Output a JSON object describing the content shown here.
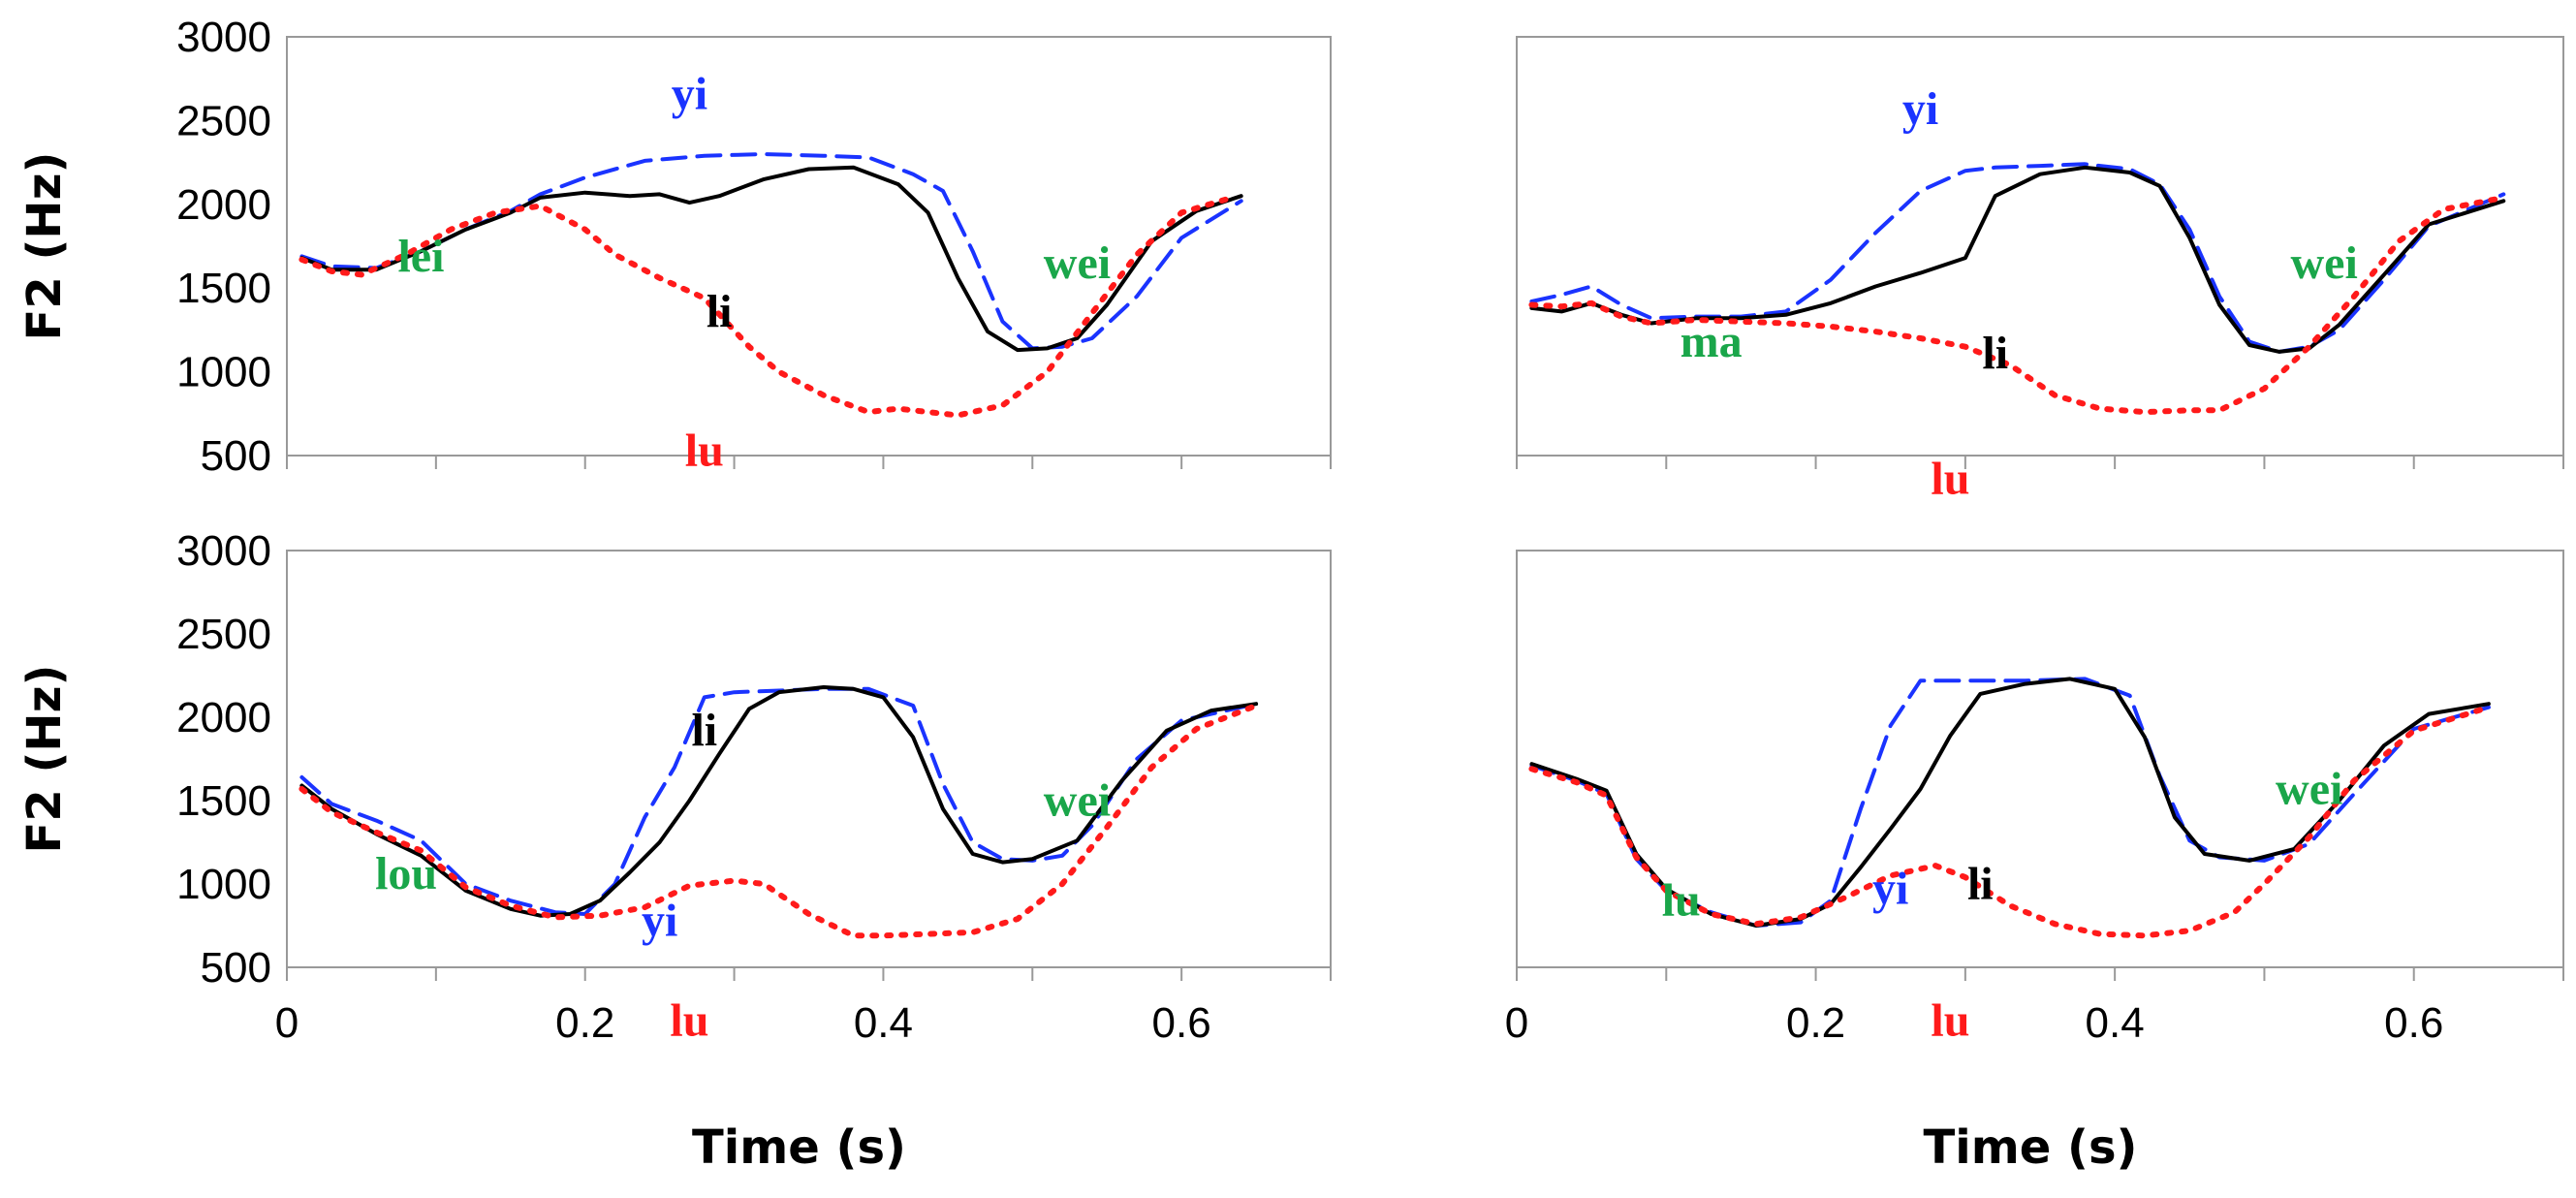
{
  "figure": {
    "colors": {
      "lu": "#ff1a1a",
      "li": "#000000",
      "yi": "#1a33ff",
      "context": "#1aa64a",
      "frame": "#999999"
    }
  },
  "chart_data": [
    {
      "type": "line",
      "panel": "top-left",
      "ylabel": "F2 (Hz)",
      "xlabel": "",
      "xlim": [
        0,
        0.7
      ],
      "ylim": [
        500,
        3000
      ],
      "yticks": [
        "500",
        "1000",
        "1500",
        "2000",
        "2500",
        "3000"
      ],
      "xticks": [],
      "series": [
        {
          "name": "yi",
          "style": "dashed",
          "color_key": "yi",
          "x": [
            0.01,
            0.03,
            0.06,
            0.09,
            0.12,
            0.15,
            0.17,
            0.2,
            0.24,
            0.28,
            0.32,
            0.36,
            0.39,
            0.42,
            0.44,
            0.46,
            0.48,
            0.5,
            0.52,
            0.54,
            0.57,
            0.6,
            0.64
          ],
          "y": [
            1690,
            1630,
            1620,
            1720,
            1850,
            1960,
            2060,
            2160,
            2260,
            2290,
            2300,
            2290,
            2280,
            2180,
            2080,
            1720,
            1300,
            1140,
            1150,
            1200,
            1450,
            1800,
            2020
          ]
        },
        {
          "name": "li",
          "style": "solid",
          "color_key": "li",
          "x": [
            0.01,
            0.03,
            0.06,
            0.09,
            0.12,
            0.15,
            0.17,
            0.2,
            0.23,
            0.25,
            0.27,
            0.29,
            0.32,
            0.35,
            0.38,
            0.41,
            0.43,
            0.45,
            0.47,
            0.49,
            0.51,
            0.53,
            0.55,
            0.58,
            0.61,
            0.64
          ],
          "y": [
            1680,
            1610,
            1610,
            1720,
            1850,
            1950,
            2040,
            2070,
            2050,
            2060,
            2010,
            2050,
            2150,
            2210,
            2220,
            2120,
            1950,
            1560,
            1240,
            1130,
            1140,
            1200,
            1400,
            1780,
            1960,
            2050
          ]
        },
        {
          "name": "lu",
          "style": "dotted",
          "color_key": "lu",
          "x": [
            0.01,
            0.03,
            0.05,
            0.08,
            0.11,
            0.14,
            0.17,
            0.2,
            0.22,
            0.25,
            0.28,
            0.31,
            0.33,
            0.36,
            0.39,
            0.41,
            0.43,
            0.45,
            0.48,
            0.51,
            0.54,
            0.57,
            0.6,
            0.63
          ],
          "y": [
            1670,
            1600,
            1580,
            1700,
            1850,
            1950,
            1990,
            1850,
            1700,
            1560,
            1440,
            1150,
            1000,
            860,
            760,
            780,
            760,
            740,
            800,
            1000,
            1350,
            1700,
            1950,
            2030
          ]
        }
      ],
      "annotations": [
        {
          "text": "lei",
          "color_key": "context"
        },
        {
          "text": "yi",
          "color_key": "yi"
        },
        {
          "text": "li",
          "color_key": "li"
        },
        {
          "text": "lu",
          "color_key": "lu"
        },
        {
          "text": "wei",
          "color_key": "context"
        }
      ]
    },
    {
      "type": "line",
      "panel": "top-right",
      "ylabel": "",
      "xlabel": "",
      "xlim": [
        0,
        0.7
      ],
      "ylim": [
        500,
        3000
      ],
      "yticks": [],
      "xticks": [],
      "series": [
        {
          "name": "yi",
          "style": "dashed",
          "color_key": "yi",
          "x": [
            0.01,
            0.03,
            0.05,
            0.07,
            0.09,
            0.12,
            0.15,
            0.18,
            0.21,
            0.24,
            0.27,
            0.3,
            0.32,
            0.35,
            0.38,
            0.41,
            0.43,
            0.45,
            0.47,
            0.49,
            0.51,
            0.53,
            0.55,
            0.58,
            0.61,
            0.66
          ],
          "y": [
            1420,
            1460,
            1510,
            1400,
            1320,
            1330,
            1330,
            1360,
            1550,
            1830,
            2080,
            2200,
            2220,
            2230,
            2240,
            2210,
            2120,
            1850,
            1450,
            1180,
            1120,
            1150,
            1250,
            1550,
            1870,
            2060
          ]
        },
        {
          "name": "li",
          "style": "solid",
          "color_key": "li",
          "x": [
            0.01,
            0.03,
            0.05,
            0.07,
            0.09,
            0.12,
            0.15,
            0.18,
            0.21,
            0.24,
            0.27,
            0.3,
            0.32,
            0.35,
            0.38,
            0.41,
            0.43,
            0.45,
            0.47,
            0.49,
            0.51,
            0.53,
            0.55,
            0.58,
            0.61,
            0.66
          ],
          "y": [
            1380,
            1360,
            1410,
            1340,
            1290,
            1320,
            1320,
            1340,
            1410,
            1510,
            1590,
            1680,
            2050,
            2180,
            2220,
            2190,
            2110,
            1800,
            1400,
            1160,
            1120,
            1140,
            1280,
            1580,
            1880,
            2020
          ]
        },
        {
          "name": "lu",
          "style": "dotted",
          "color_key": "lu",
          "x": [
            0.01,
            0.03,
            0.05,
            0.07,
            0.09,
            0.12,
            0.15,
            0.18,
            0.21,
            0.24,
            0.27,
            0.3,
            0.33,
            0.36,
            0.39,
            0.42,
            0.45,
            0.47,
            0.5,
            0.53,
            0.56,
            0.59,
            0.62,
            0.66
          ],
          "y": [
            1400,
            1390,
            1410,
            1330,
            1290,
            1310,
            1300,
            1290,
            1270,
            1240,
            1200,
            1150,
            1040,
            860,
            780,
            760,
            770,
            770,
            900,
            1150,
            1450,
            1780,
            1970,
            2040
          ]
        }
      ],
      "annotations": [
        {
          "text": "ma",
          "color_key": "context"
        },
        {
          "text": "yi",
          "color_key": "yi"
        },
        {
          "text": "li",
          "color_key": "li"
        },
        {
          "text": "lu",
          "color_key": "lu"
        },
        {
          "text": "wei",
          "color_key": "context"
        }
      ]
    },
    {
      "type": "line",
      "panel": "bottom-left",
      "ylabel": "F2 (Hz)",
      "xlabel": "Time (s)",
      "xlim": [
        0,
        0.7
      ],
      "ylim": [
        500,
        3000
      ],
      "yticks": [
        "500",
        "1000",
        "1500",
        "2000",
        "2500",
        "3000"
      ],
      "xticks": [
        "0",
        "0.2",
        "0.4",
        "0.6"
      ],
      "series": [
        {
          "name": "yi",
          "style": "dashed",
          "color_key": "yi",
          "x": [
            0.01,
            0.03,
            0.06,
            0.09,
            0.12,
            0.15,
            0.18,
            0.2,
            0.22,
            0.24,
            0.26,
            0.28,
            0.3,
            0.33,
            0.36,
            0.39,
            0.42,
            0.44,
            0.46,
            0.48,
            0.5,
            0.52,
            0.54,
            0.57,
            0.6,
            0.65
          ],
          "y": [
            1640,
            1480,
            1380,
            1260,
            1000,
            900,
            830,
            820,
            1000,
            1400,
            1700,
            2120,
            2150,
            2160,
            2170,
            2170,
            2070,
            1600,
            1250,
            1150,
            1140,
            1170,
            1350,
            1750,
            1980,
            2080
          ]
        },
        {
          "name": "li",
          "style": "solid",
          "color_key": "li",
          "x": [
            0.01,
            0.03,
            0.06,
            0.09,
            0.12,
            0.15,
            0.17,
            0.19,
            0.21,
            0.23,
            0.25,
            0.27,
            0.29,
            0.31,
            0.33,
            0.36,
            0.38,
            0.4,
            0.42,
            0.44,
            0.46,
            0.48,
            0.5,
            0.53,
            0.56,
            0.59,
            0.62,
            0.65
          ],
          "y": [
            1590,
            1450,
            1300,
            1170,
            960,
            850,
            810,
            820,
            900,
            1070,
            1250,
            1500,
            1780,
            2050,
            2150,
            2180,
            2170,
            2120,
            1880,
            1450,
            1180,
            1130,
            1150,
            1260,
            1620,
            1920,
            2040,
            2080
          ]
        },
        {
          "name": "lu",
          "style": "dotted",
          "color_key": "lu",
          "x": [
            0.01,
            0.03,
            0.06,
            0.09,
            0.12,
            0.15,
            0.18,
            0.21,
            0.24,
            0.27,
            0.3,
            0.32,
            0.35,
            0.38,
            0.4,
            0.43,
            0.46,
            0.49,
            0.52,
            0.55,
            0.58,
            0.61,
            0.65
          ],
          "y": [
            1570,
            1430,
            1310,
            1200,
            980,
            870,
            800,
            810,
            860,
            990,
            1020,
            1000,
            820,
            690,
            690,
            700,
            710,
            790,
            1000,
            1340,
            1700,
            1930,
            2070
          ]
        }
      ],
      "annotations": [
        {
          "text": "lou",
          "color_key": "context"
        },
        {
          "text": "yi",
          "color_key": "yi"
        },
        {
          "text": "li",
          "color_key": "li"
        },
        {
          "text": "lu",
          "color_key": "lu"
        },
        {
          "text": "wei",
          "color_key": "context"
        }
      ]
    },
    {
      "type": "line",
      "panel": "bottom-right",
      "ylabel": "",
      "xlabel": "Time (s)",
      "xlim": [
        0,
        0.7
      ],
      "ylim": [
        500,
        3000
      ],
      "yticks": [],
      "xticks": [
        "0",
        "0.2",
        "0.4",
        "0.6"
      ],
      "series": [
        {
          "name": "yi",
          "style": "dashed",
          "color_key": "yi",
          "x": [
            0.01,
            0.04,
            0.06,
            0.08,
            0.1,
            0.13,
            0.16,
            0.19,
            0.21,
            0.23,
            0.25,
            0.27,
            0.3,
            0.34,
            0.38,
            0.41,
            0.43,
            0.45,
            0.47,
            0.5,
            0.53,
            0.56,
            0.6,
            0.65
          ],
          "y": [
            1710,
            1620,
            1540,
            1150,
            960,
            830,
            750,
            770,
            900,
            1450,
            1950,
            2220,
            2220,
            2220,
            2230,
            2130,
            1650,
            1260,
            1160,
            1140,
            1240,
            1540,
            1930,
            2060
          ]
        },
        {
          "name": "li",
          "style": "solid",
          "color_key": "li",
          "x": [
            0.01,
            0.04,
            0.06,
            0.08,
            0.1,
            0.13,
            0.16,
            0.19,
            0.21,
            0.23,
            0.25,
            0.27,
            0.29,
            0.31,
            0.34,
            0.37,
            0.4,
            0.42,
            0.44,
            0.46,
            0.49,
            0.52,
            0.55,
            0.58,
            0.61,
            0.65
          ],
          "y": [
            1720,
            1630,
            1560,
            1180,
            970,
            820,
            750,
            790,
            880,
            1100,
            1330,
            1570,
            1890,
            2140,
            2200,
            2230,
            2170,
            1880,
            1400,
            1180,
            1140,
            1210,
            1500,
            1830,
            2020,
            2080
          ]
        },
        {
          "name": "lu",
          "style": "dotted",
          "color_key": "lu",
          "x": [
            0.01,
            0.04,
            0.06,
            0.08,
            0.1,
            0.13,
            0.16,
            0.19,
            0.22,
            0.25,
            0.28,
            0.3,
            0.33,
            0.36,
            0.39,
            0.42,
            0.45,
            0.48,
            0.5,
            0.53,
            0.56,
            0.6,
            0.65
          ],
          "y": [
            1690,
            1610,
            1530,
            1160,
            960,
            820,
            760,
            800,
            920,
            1050,
            1110,
            1040,
            870,
            760,
            700,
            690,
            720,
            830,
            1000,
            1280,
            1620,
            1920,
            2060
          ]
        }
      ],
      "annotations": [
        {
          "text": "lu",
          "color_key": "context"
        },
        {
          "text": "yi",
          "color_key": "yi"
        },
        {
          "text": "li",
          "color_key": "li"
        },
        {
          "text": "lu",
          "color_key": "lu"
        },
        {
          "text": "wei",
          "color_key": "context"
        }
      ]
    }
  ]
}
